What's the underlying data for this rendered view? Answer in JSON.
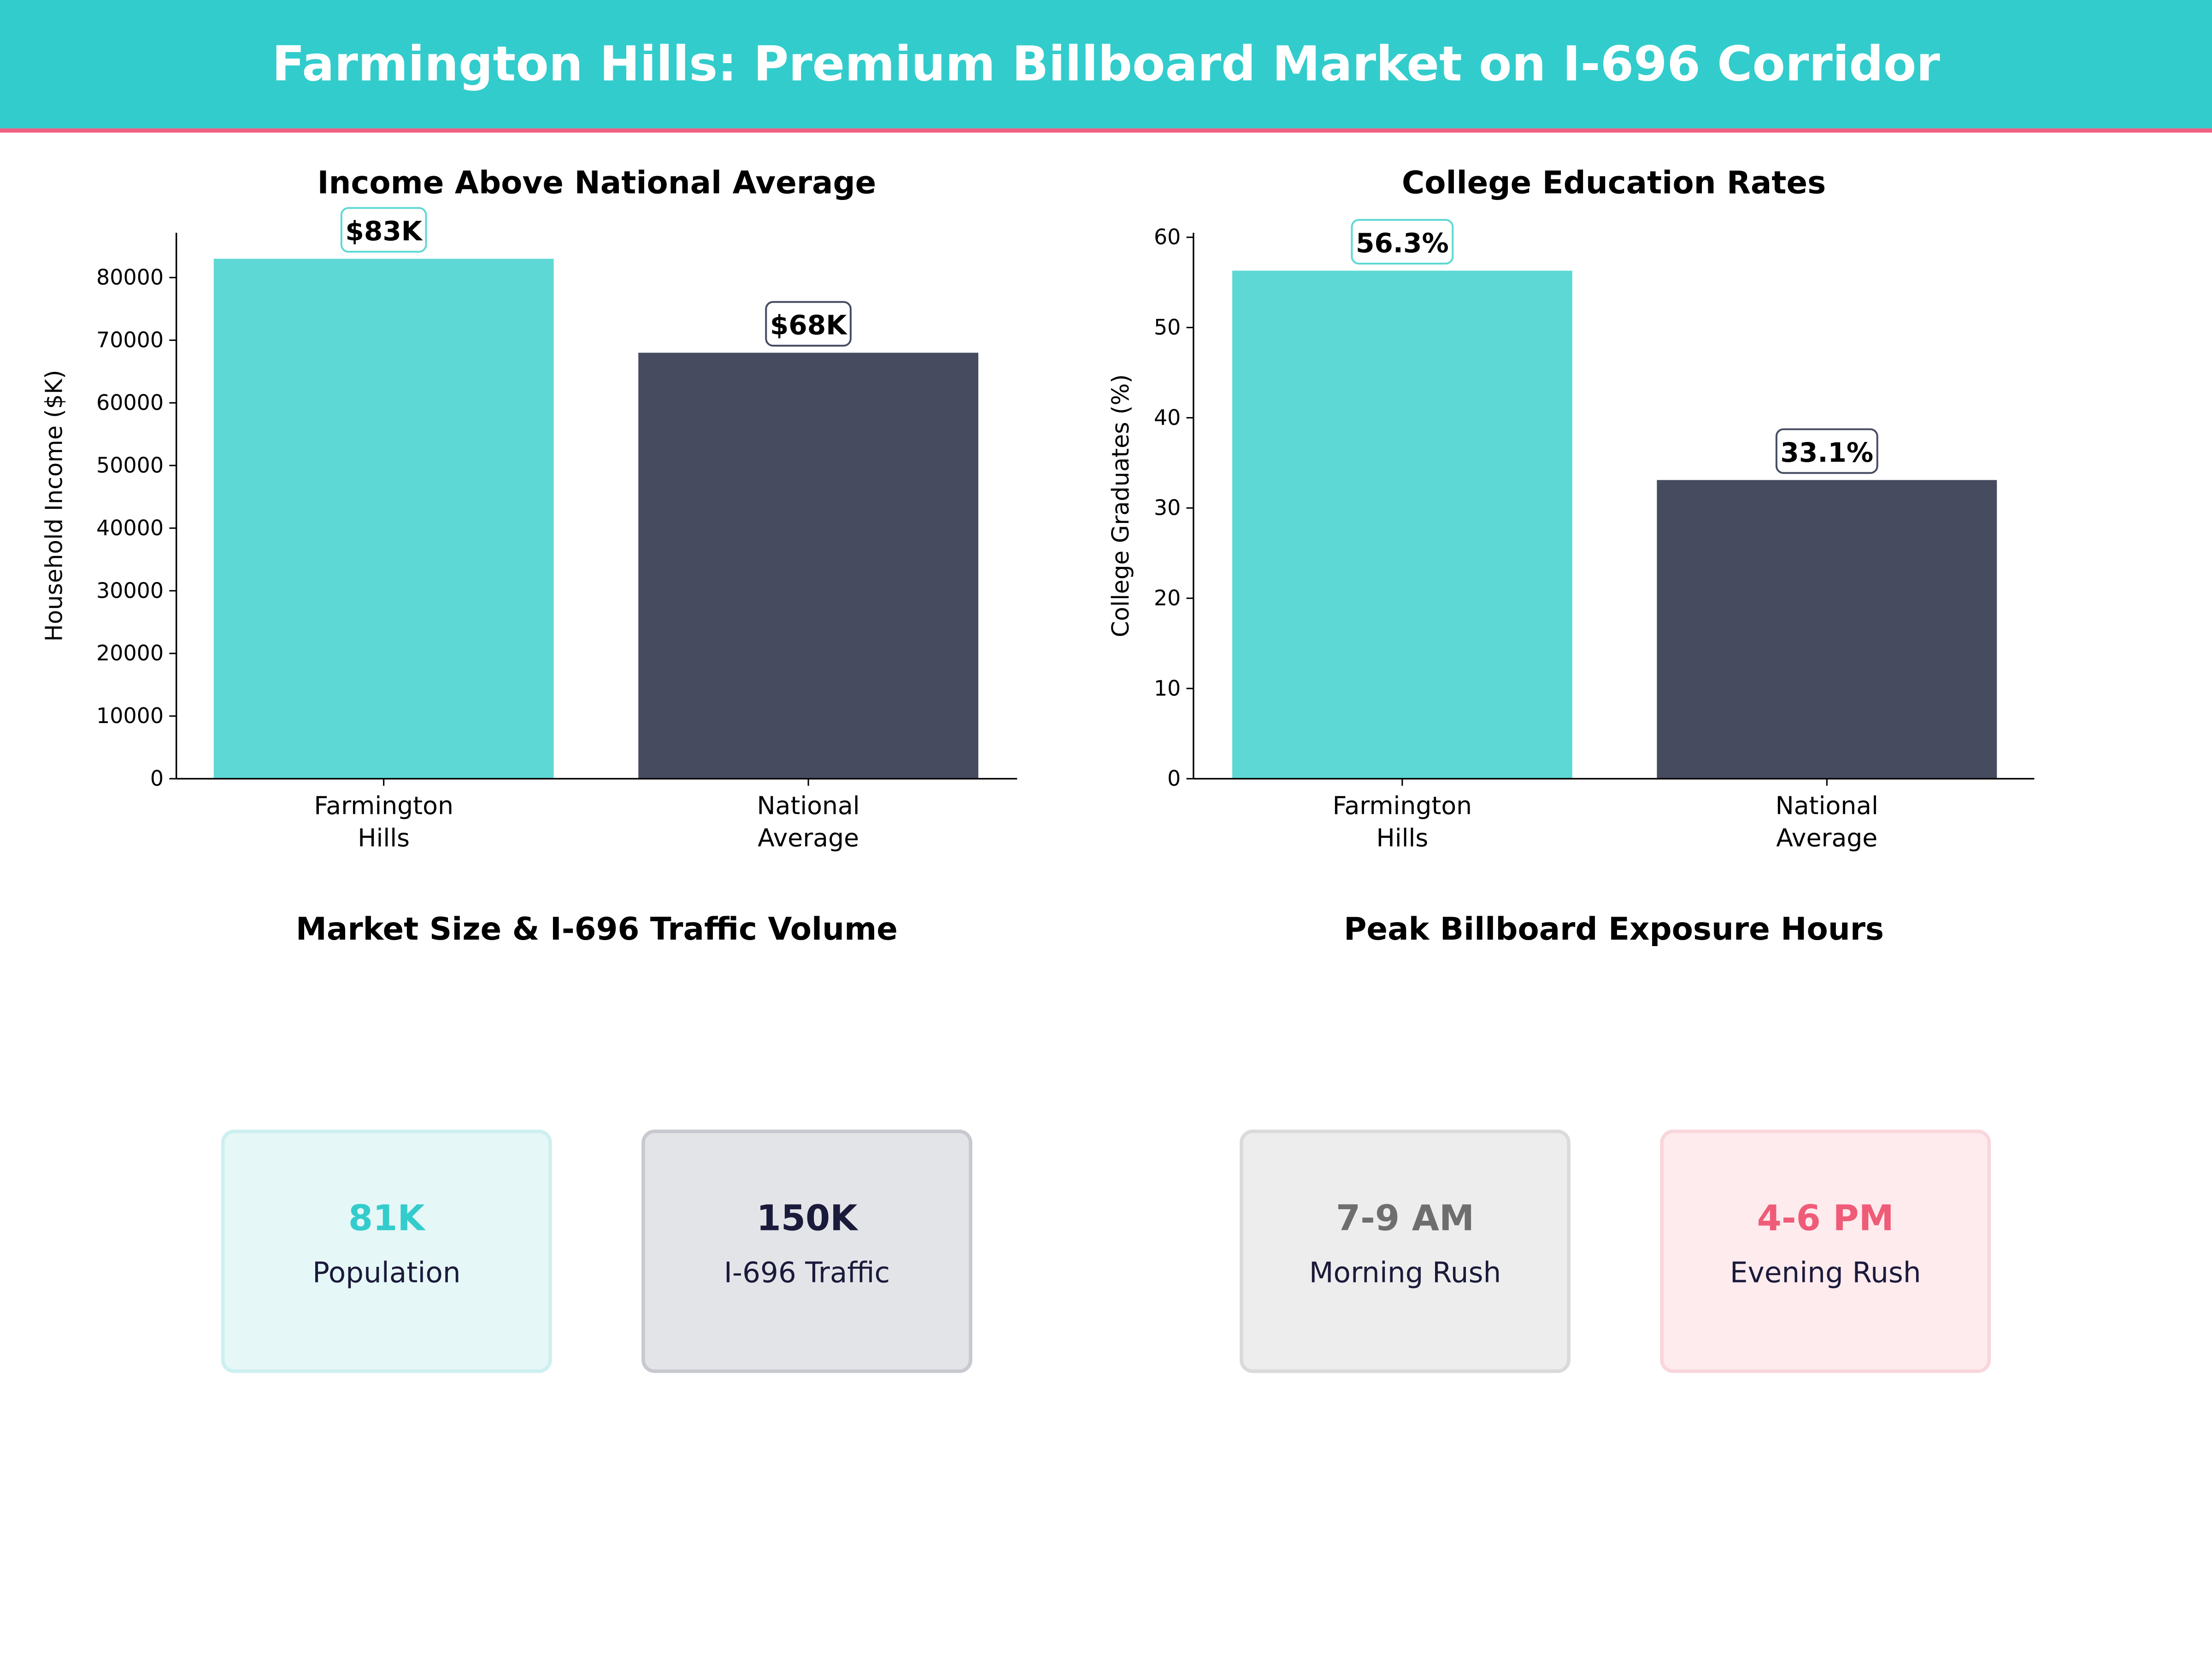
{
  "header": {
    "title": "Farmington Hills: Premium Billboard Market on I-696 Corridor",
    "bg_color": "#33CCCC",
    "accent_line_color": "#F06080"
  },
  "chart_data": [
    {
      "type": "bar",
      "title": "Income Above National Average",
      "ylabel": "Household Income ($K)",
      "xlabel": "",
      "categories": [
        [
          "Farmington",
          "Hills"
        ],
        [
          "National",
          "Average"
        ]
      ],
      "values": [
        83000,
        68000
      ],
      "data_labels": [
        "$83K",
        "$68K"
      ],
      "colors": [
        "#5DD8D4",
        "#464B60"
      ],
      "ylim": [
        0,
        87150
      ],
      "yticks": [
        0,
        10000,
        20000,
        30000,
        40000,
        50000,
        60000,
        70000,
        80000
      ],
      "grid": false
    },
    {
      "type": "bar",
      "title": "College Education Rates",
      "ylabel": "College Graduates (%)",
      "xlabel": "",
      "categories": [
        [
          "Farmington",
          "Hills"
        ],
        [
          "National",
          "Average"
        ]
      ],
      "values": [
        56.3,
        33.1
      ],
      "data_labels": [
        "56.3%",
        "33.1%"
      ],
      "colors": [
        "#5DD8D4",
        "#464B60"
      ],
      "ylim": [
        0,
        60.5
      ],
      "yticks": [
        0,
        10,
        20,
        30,
        40,
        50,
        60
      ],
      "grid": false
    }
  ],
  "panels": [
    {
      "title": "Market Size & I-696 Traffic Volume",
      "cards": [
        {
          "value": "81K",
          "label": "Population",
          "value_color": "#33CCCC",
          "bg": "#E6F7F7",
          "border": "#CDEFEF"
        },
        {
          "value": "150K",
          "label": "I-696 Traffic",
          "value_color": "#1A1A3A",
          "bg": "#E3E4E8",
          "border": "#C8C9CF"
        }
      ]
    },
    {
      "title": "Peak Billboard Exposure Hours",
      "cards": [
        {
          "value": "7-9 AM",
          "label": "Morning Rush",
          "value_color": "#6E6E6E",
          "bg": "#EDEDED",
          "border": "#DADADA"
        },
        {
          "value": "4-6 PM",
          "label": "Evening Rush",
          "value_color": "#EF5C78",
          "bg": "#FDEBEE",
          "border": "#F8D6DC"
        }
      ]
    }
  ]
}
